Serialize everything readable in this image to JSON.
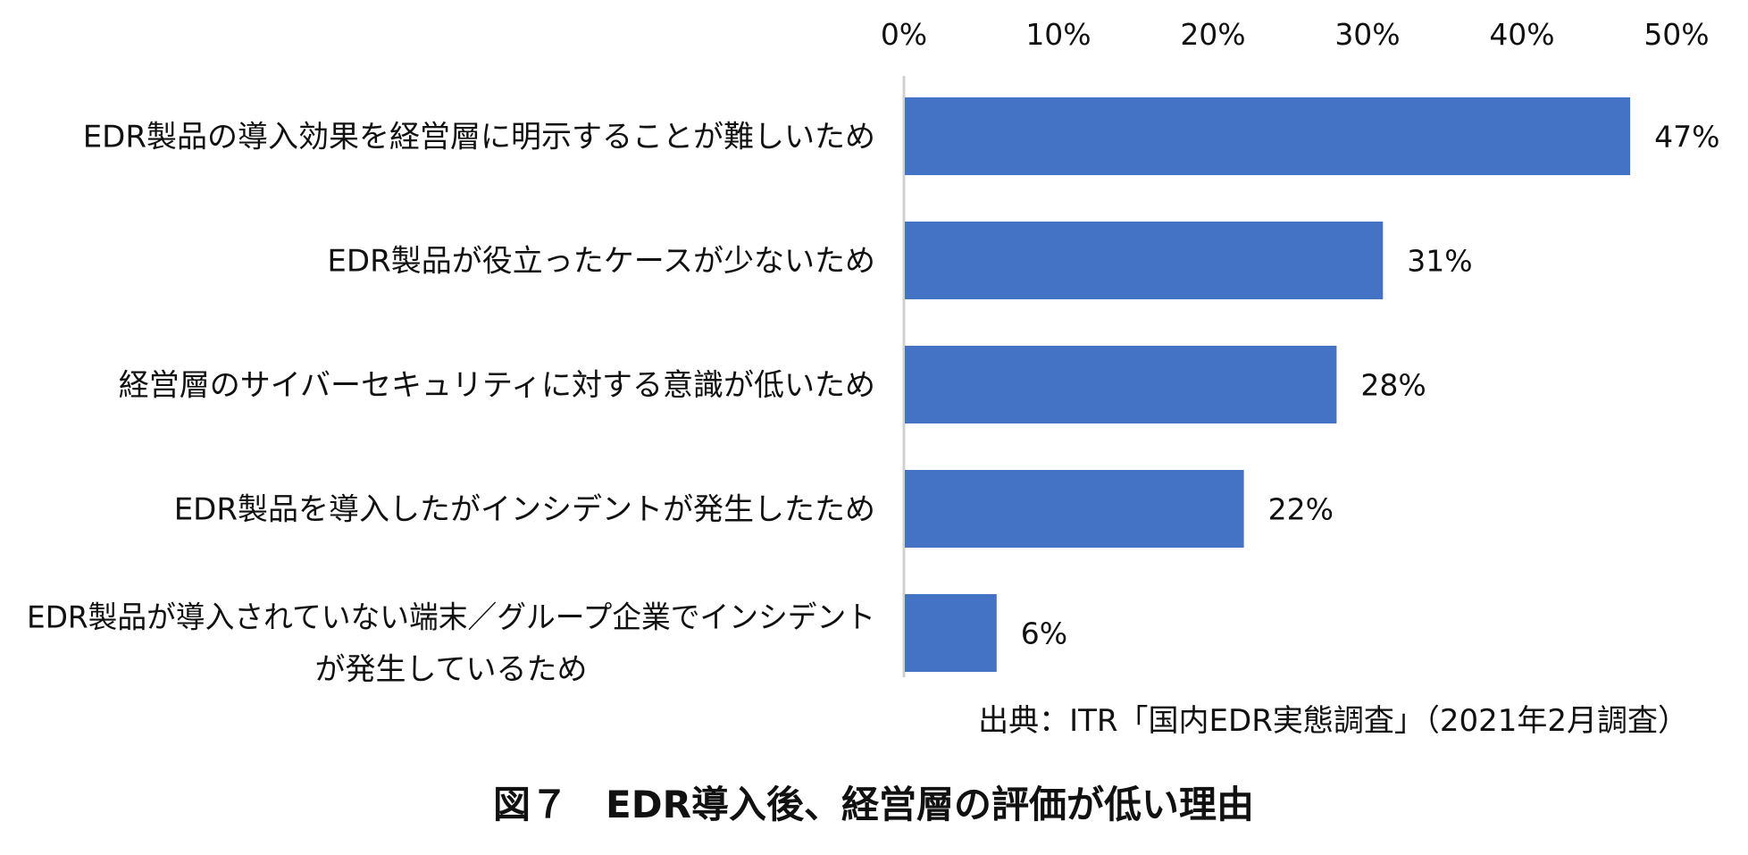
{
  "chart_data": {
    "type": "bar",
    "orientation": "horizontal",
    "categories": [
      [
        "EDR製品の導入効果を経営層に明示することが難しいため"
      ],
      [
        "EDR製品が役立ったケースが少ないため"
      ],
      [
        "経営層のサイバーセキュリティに対する意識が低いため"
      ],
      [
        "EDR製品を導入したがインシデントが発生したため"
      ],
      [
        "EDR製品が導入されていない端末／グループ企業でインシデント",
        "が発生しているため"
      ]
    ],
    "values": [
      47,
      31,
      28,
      22,
      6
    ],
    "data_labels": [
      "47%",
      "31%",
      "28%",
      "22%",
      "6%"
    ],
    "x_ticks": [
      "0%",
      "10%",
      "20%",
      "30%",
      "40%",
      "50%"
    ],
    "xlim": [
      0,
      50
    ],
    "axis_position": "top",
    "grid": false,
    "legend": "none",
    "bar_color": "#4472C4",
    "axis_color": "#D0D0D0"
  },
  "source_text": "出典：ITR「国内EDR実態調査」（2021年2月調査）",
  "caption": "図７　EDR導入後、経営層の評価が低い理由"
}
